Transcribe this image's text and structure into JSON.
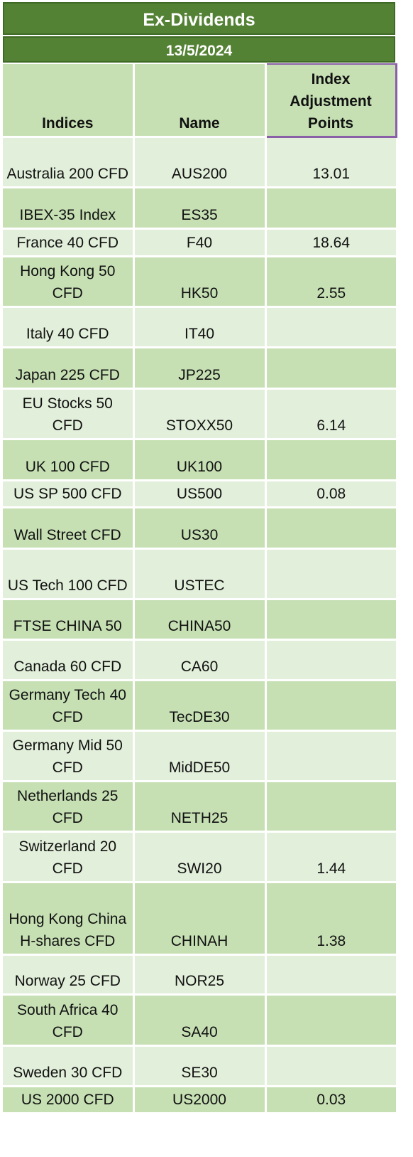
{
  "title": "Ex-Dividends",
  "date": "13/5/2024",
  "columns": {
    "indices": "Indices",
    "name": "Name",
    "points": "Index Adjustment Points"
  },
  "rows": [
    {
      "index": "Australia 200 CFD",
      "name": "AUS200",
      "points": "13.01"
    },
    {
      "index": "IBEX-35 Index",
      "name": "ES35",
      "points": ""
    },
    {
      "index": "France 40 CFD",
      "name": "F40",
      "points": "18.64"
    },
    {
      "index": "Hong Kong 50 CFD",
      "name": "HK50",
      "points": "2.55"
    },
    {
      "index": "Italy 40 CFD",
      "name": "IT40",
      "points": ""
    },
    {
      "index": "Japan 225 CFD",
      "name": "JP225",
      "points": ""
    },
    {
      "index": "EU Stocks 50 CFD",
      "name": "STOXX50",
      "points": "6.14"
    },
    {
      "index": "UK 100 CFD",
      "name": "UK100",
      "points": ""
    },
    {
      "index": "US SP 500 CFD",
      "name": "US500",
      "points": "0.08"
    },
    {
      "index": "Wall Street CFD",
      "name": "US30",
      "points": ""
    },
    {
      "index": "US Tech 100 CFD",
      "name": "USTEC",
      "points": ""
    },
    {
      "index": "FTSE CHINA 50",
      "name": "CHINA50",
      "points": ""
    },
    {
      "index": "Canada 60 CFD",
      "name": "CA60",
      "points": ""
    },
    {
      "index": "Germany Tech 40 CFD",
      "name": "TecDE30",
      "points": ""
    },
    {
      "index": "Germany Mid 50 CFD",
      "name": "MidDE50",
      "points": ""
    },
    {
      "index": "Netherlands 25 CFD",
      "name": "NETH25",
      "points": ""
    },
    {
      "index": "Switzerland 20 CFD",
      "name": "SWI20",
      "points": "1.44"
    },
    {
      "index": "Hong Kong China H-shares CFD",
      "name": "CHINAH",
      "points": "1.38"
    },
    {
      "index": "Norway 25 CFD",
      "name": "NOR25",
      "points": ""
    },
    {
      "index": "South Africa 40 CFD",
      "name": "SA40",
      "points": ""
    },
    {
      "index": "Sweden 30 CFD",
      "name": "SE30",
      "points": ""
    },
    {
      "index": "US 2000 CFD",
      "name": "US2000",
      "points": "0.03"
    }
  ],
  "colors": {
    "banner": "#548235",
    "row_light": "#e2efda",
    "row_dark": "#c6e0b4",
    "header_outline": "#8a5fa8"
  }
}
